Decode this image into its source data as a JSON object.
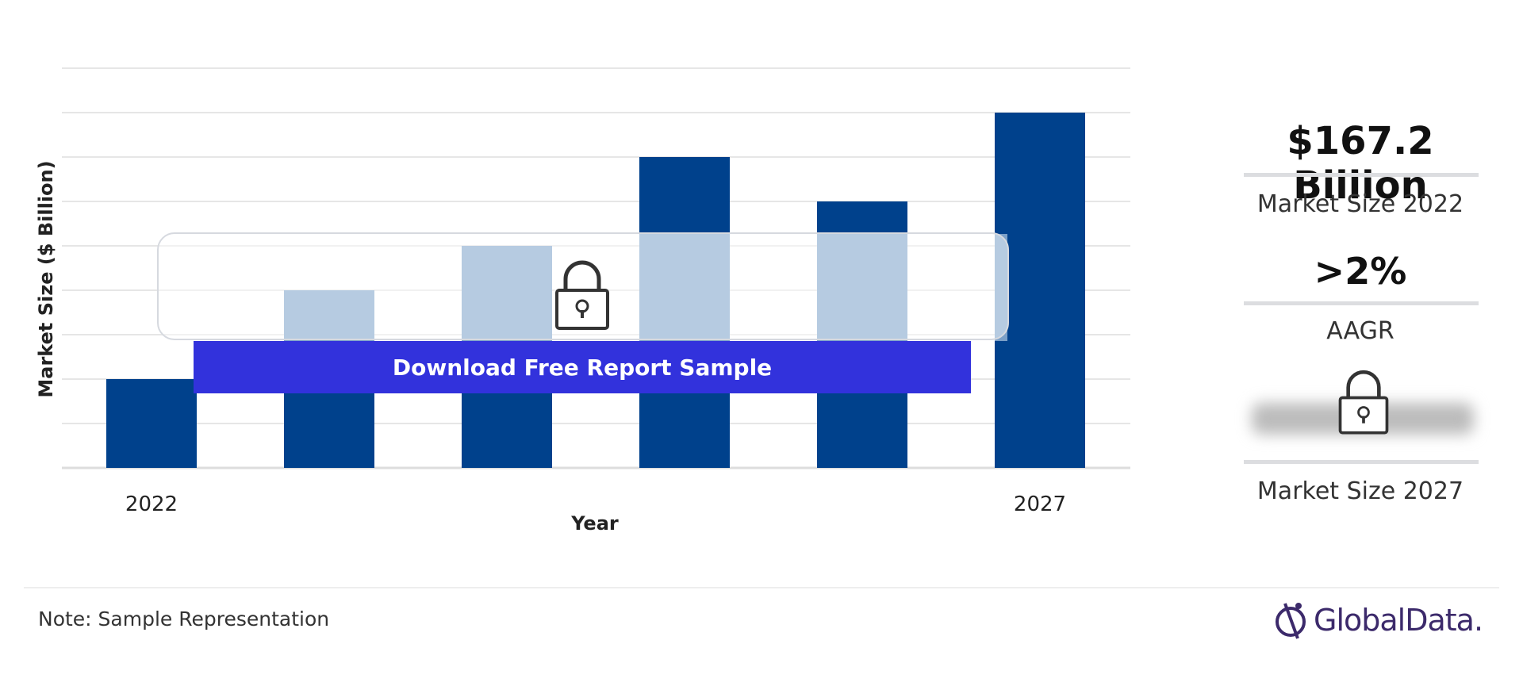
{
  "chart_data": {
    "type": "bar",
    "categories": [
      "2022",
      "",
      "",
      "",
      "",
      "2027"
    ],
    "values": [
      2,
      4,
      5,
      7,
      6,
      8
    ],
    "title": "",
    "xlabel": "Year",
    "ylabel": "Market Size ($ Billion)",
    "ylim": [
      0,
      9
    ],
    "grid": true,
    "bar_color": "#00418c",
    "bar_faded_color": "#7ba0c8"
  },
  "overlay": {
    "download_label": "Download Free Report Sample",
    "button_color": "#3232dc"
  },
  "kpis": {
    "market_size_value": "$167.2 Billion",
    "market_size_label": "Market Size 2022",
    "aagr_value": ">2%",
    "aagr_label": "AAGR",
    "future_label": "Market Size 2027"
  },
  "footer": {
    "note": "Note: Sample Representation",
    "brand": "GlobalData."
  }
}
